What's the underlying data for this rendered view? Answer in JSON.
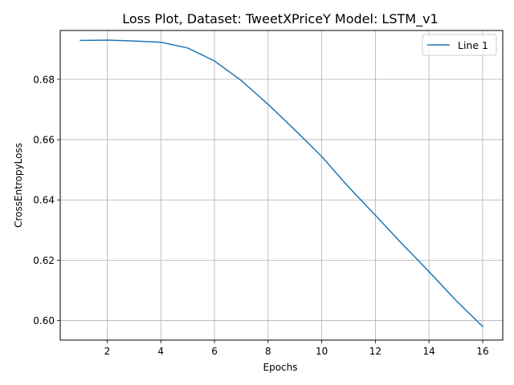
{
  "chart_data": {
    "type": "line",
    "title": "Loss Plot, Dataset: TweetXPriceY Model: LSTM_v1",
    "xlabel": "Epochs",
    "ylabel": "CrossEntropyLoss",
    "xlim": [
      0.25,
      16.75
    ],
    "ylim": [
      0.5935,
      0.6962
    ],
    "xticks": [
      2,
      4,
      6,
      8,
      10,
      12,
      14,
      16
    ],
    "yticks": [
      0.6,
      0.62,
      0.64,
      0.66,
      0.68
    ],
    "xtick_labels": [
      "2",
      "4",
      "6",
      "8",
      "10",
      "12",
      "14",
      "16"
    ],
    "ytick_labels": [
      "0.60",
      "0.62",
      "0.64",
      "0.66",
      "0.68"
    ],
    "grid": true,
    "legend_position": "top-right",
    "series": [
      {
        "name": "Line 1",
        "color": "#1f77b4",
        "x": [
          1,
          2,
          3,
          4,
          5,
          6,
          7,
          8,
          9,
          10,
          11,
          12,
          13,
          14,
          15,
          16
        ],
        "values": [
          0.6929,
          0.693,
          0.6927,
          0.6923,
          0.6904,
          0.6861,
          0.6796,
          0.6717,
          0.6632,
          0.6544,
          0.6443,
          0.6349,
          0.6254,
          0.6162,
          0.6067,
          0.598
        ]
      }
    ]
  }
}
